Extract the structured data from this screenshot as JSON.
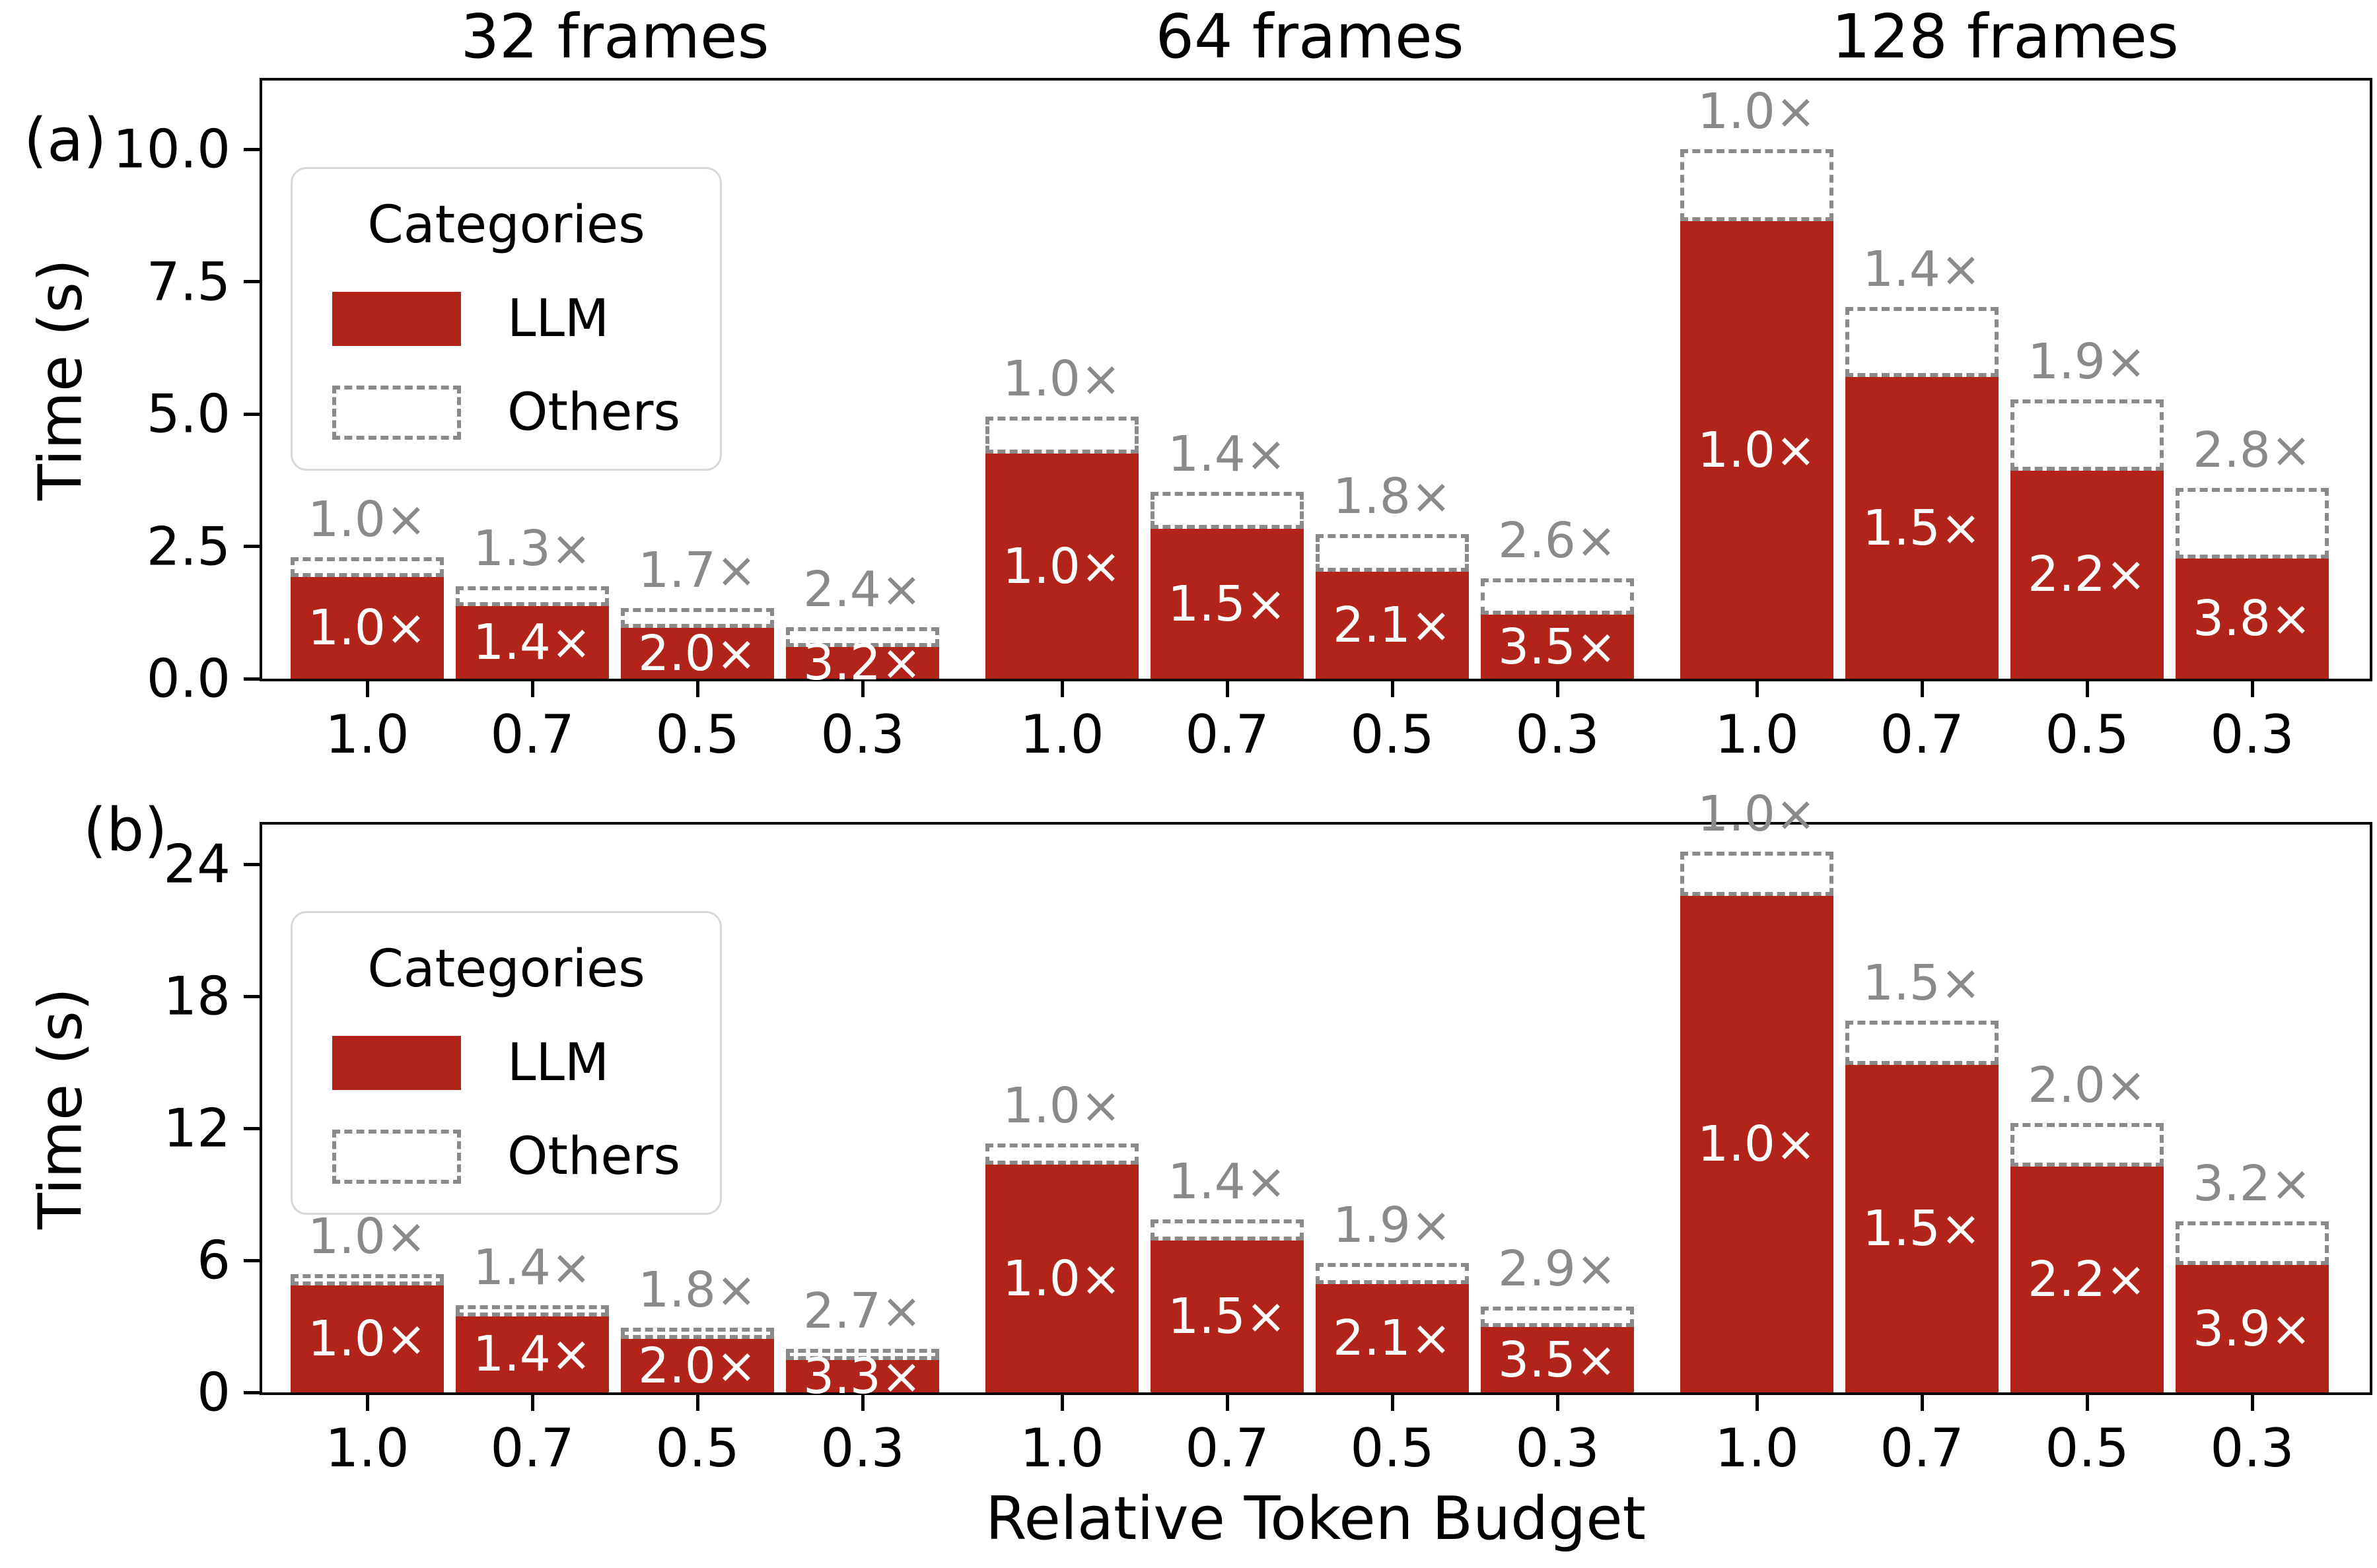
{
  "chart_data": {
    "type": "bar",
    "stacked": true,
    "grid": false,
    "bar_color": "#b22419",
    "others_style": "white fill, gray dashed outline",
    "above_label_color": "#8a8a8a",
    "inside_label_color": "#ffffff",
    "column_titles": [
      "32 frames",
      "64 frames",
      "128 frames"
    ],
    "x_axis_label": "Relative Token Budget",
    "legend": {
      "title": "Categories",
      "entries": [
        "LLM",
        "Others"
      ],
      "position": "upper left"
    },
    "panels": [
      {
        "panel_label": "(a)",
        "ylabel": "Time (s)",
        "ylim": [
          0,
          11.3
        ],
        "ytick_values": [
          0,
          2.5,
          5,
          7.5,
          10
        ],
        "ytick_labels": [
          "0.0",
          "2.5",
          "5.0",
          "7.5",
          "10.0"
        ],
        "groups": [
          {
            "frames": "32 frames",
            "x": [
              "1.0",
              "0.7",
              "0.5",
              "0.3"
            ],
            "series": [
              {
                "name": "LLM",
                "values": [
                  1.92,
                  1.37,
                  0.96,
                  0.6
                ]
              },
              {
                "name": "Others",
                "values": [
                  0.38,
                  0.38,
                  0.38,
                  0.37
                ]
              }
            ],
            "above_labels": [
              "1.0×",
              "1.3×",
              "1.7×",
              "2.4×"
            ],
            "inside_labels": [
              "1.0×",
              "1.4×",
              "2.0×",
              "3.2×"
            ]
          },
          {
            "frames": "64 frames",
            "x": [
              "1.0",
              "0.7",
              "0.5",
              "0.3"
            ],
            "series": [
              {
                "name": "LLM",
                "values": [
                  4.25,
                  2.83,
                  2.02,
                  1.21
                ]
              },
              {
                "name": "Others",
                "values": [
                  0.7,
                  0.7,
                  0.71,
                  0.69
                ]
              }
            ],
            "above_labels": [
              "1.0×",
              "1.4×",
              "1.8×",
              "2.6×"
            ],
            "inside_labels": [
              "1.0×",
              "1.5×",
              "2.1×",
              "3.5×"
            ]
          },
          {
            "frames": "128 frames",
            "x": [
              "1.0",
              "0.7",
              "0.5",
              "0.3"
            ],
            "series": [
              {
                "name": "LLM",
                "values": [
                  8.64,
                  5.7,
                  3.93,
                  2.27
                ]
              },
              {
                "name": "Others",
                "values": [
                  1.36,
                  1.32,
                  1.34,
                  1.34
                ]
              }
            ],
            "above_labels": [
              "1.0×",
              "1.4×",
              "1.9×",
              "2.8×"
            ],
            "inside_labels": [
              "1.0×",
              "1.5×",
              "2.2×",
              "3.8×"
            ]
          }
        ]
      },
      {
        "panel_label": "(b)",
        "ylabel": "Time (s)",
        "ylim": [
          0,
          25.8
        ],
        "ytick_values": [
          0,
          6,
          12,
          18,
          24
        ],
        "ytick_labels": [
          "0",
          "6",
          "12",
          "18",
          "24"
        ],
        "groups": [
          {
            "frames": "32 frames",
            "x": [
              "1.0",
              "0.7",
              "0.5",
              "0.3"
            ],
            "series": [
              {
                "name": "LLM",
                "values": [
                  4.85,
                  3.46,
                  2.43,
                  1.47
                ]
              },
              {
                "name": "Others",
                "values": [
                  0.52,
                  0.5,
                  0.5,
                  0.5
                ]
              }
            ],
            "above_labels": [
              "1.0×",
              "1.4×",
              "1.8×",
              "2.7×"
            ],
            "inside_labels": [
              "1.0×",
              "1.4×",
              "2.0×",
              "3.3×"
            ]
          },
          {
            "frames": "64 frames",
            "x": [
              "1.0",
              "0.7",
              "0.5",
              "0.3"
            ],
            "series": [
              {
                "name": "LLM",
                "values": [
                  10.35,
                  6.9,
                  4.93,
                  2.96
                ]
              },
              {
                "name": "Others",
                "values": [
                  0.95,
                  0.95,
                  0.95,
                  0.95
                ]
              }
            ],
            "above_labels": [
              "1.0×",
              "1.4×",
              "1.9×",
              "2.9×"
            ],
            "inside_labels": [
              "1.0×",
              "1.5×",
              "2.1×",
              "3.5×"
            ]
          },
          {
            "frames": "128 frames",
            "x": [
              "1.0",
              "0.7",
              "0.5",
              "0.3"
            ],
            "series": [
              {
                "name": "LLM",
                "values": [
                  22.55,
                  14.87,
                  10.25,
                  5.78
                ]
              },
              {
                "name": "Others",
                "values": [
                  2.02,
                  2.03,
                  2.0,
                  2.0
                ]
              }
            ],
            "above_labels": [
              "1.0×",
              "1.5×",
              "2.0×",
              "3.2×"
            ],
            "inside_labels": [
              "1.0×",
              "1.5×",
              "2.2×",
              "3.9×"
            ]
          }
        ]
      }
    ]
  }
}
